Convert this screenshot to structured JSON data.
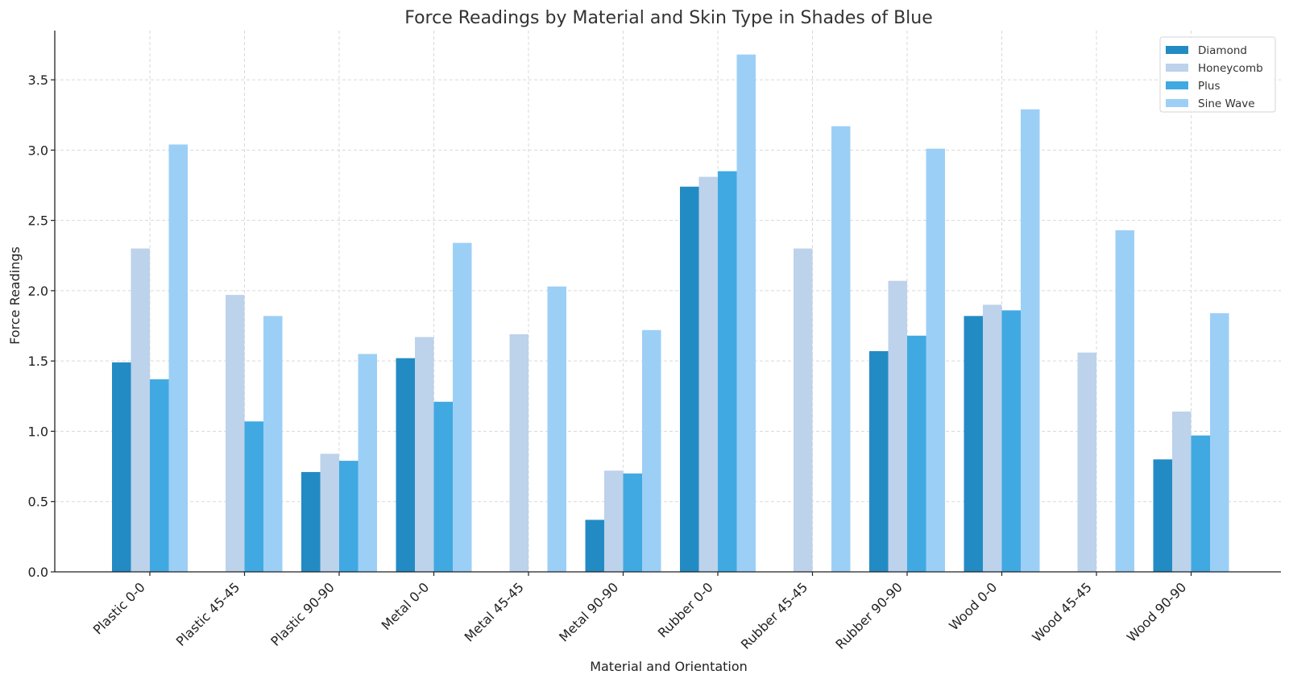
{
  "chart_data": {
    "type": "bar",
    "title": "Force Readings by Material and Skin Type in Shades of Blue",
    "xlabel": "Material and Orientation",
    "ylabel": "Force Readings",
    "ylim": [
      0,
      3.85
    ],
    "yticks": [
      "0.0",
      "0.5",
      "1.0",
      "1.5",
      "2.0",
      "2.5",
      "3.0",
      "3.5"
    ],
    "grid": true,
    "legend_position": "top-right",
    "categories": [
      "Plastic 0-0",
      "Plastic 45-45",
      "Plastic 90-90",
      "Metal 0-0",
      "Metal 45-45",
      "Metal 90-90",
      "Rubber 0-0",
      "Rubber 45-45",
      "Rubber 90-90",
      "Wood 0-0",
      "Wood 45-45",
      "Wood 90-90"
    ],
    "series": [
      {
        "name": "Diamond",
        "color": "#238bc3",
        "values": [
          1.49,
          0,
          0.71,
          1.52,
          0,
          0.37,
          2.74,
          0,
          1.57,
          1.82,
          0,
          0.8
        ]
      },
      {
        "name": "Honeycomb",
        "color": "#bdd2eb",
        "values": [
          2.3,
          1.97,
          0.84,
          1.67,
          1.69,
          0.72,
          2.81,
          2.3,
          2.07,
          1.9,
          1.56,
          1.14
        ]
      },
      {
        "name": "Plus",
        "color": "#40a9e2",
        "values": [
          1.37,
          1.07,
          0.79,
          1.21,
          0,
          0.7,
          2.85,
          0,
          1.68,
          1.86,
          0,
          0.97
        ]
      },
      {
        "name": "Sine Wave",
        "color": "#9ccff6",
        "values": [
          3.04,
          1.82,
          1.55,
          2.34,
          2.03,
          1.72,
          3.68,
          3.17,
          3.01,
          3.29,
          2.43,
          1.84
        ]
      }
    ]
  }
}
